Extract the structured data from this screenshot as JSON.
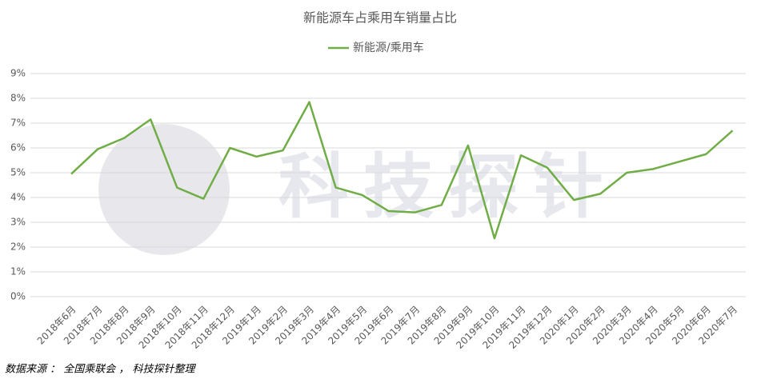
{
  "chart_data": {
    "type": "line",
    "title": "新能源车占乘用车销量占比",
    "categories": [
      "2018年6月",
      "2018年7月",
      "2018年8月",
      "2018年9月",
      "2018年10月",
      "2018年11月",
      "2018年12月",
      "2019年1月",
      "2019年2月",
      "2019年3月",
      "2019年4月",
      "2019年5月",
      "2019年6月",
      "2019年7月",
      "2019年8月",
      "2019年9月",
      "2019年10月",
      "2019年11月",
      "2019年12月",
      "2020年1月",
      "2020年2月",
      "2020年3月",
      "2020年4月",
      "2020年5月",
      "2020年6月",
      "2020年7月"
    ],
    "series": [
      {
        "name": "新能源/乘用车",
        "color": "#70ad47",
        "values": [
          4.95,
          5.95,
          6.4,
          7.15,
          4.4,
          3.95,
          6.0,
          5.65,
          5.9,
          7.85,
          4.4,
          4.1,
          3.45,
          3.4,
          3.7,
          6.1,
          2.35,
          5.7,
          5.2,
          3.9,
          4.15,
          5.0,
          5.15,
          5.45,
          5.75,
          6.7
        ]
      }
    ],
    "ylim": [
      0,
      9
    ],
    "yticks": [
      {
        "value": 0,
        "label": "0%"
      },
      {
        "value": 1,
        "label": "1%"
      },
      {
        "value": 2,
        "label": "2%"
      },
      {
        "value": 3,
        "label": "3%"
      },
      {
        "value": 4,
        "label": "4%"
      },
      {
        "value": 5,
        "label": "5%"
      },
      {
        "value": 6,
        "label": "6%"
      },
      {
        "value": 7,
        "label": "7%"
      },
      {
        "value": 8,
        "label": "8%"
      },
      {
        "value": 9,
        "label": "9%"
      }
    ],
    "grid": true,
    "legend": "top",
    "watermark": "科技探针",
    "source": "数据来源 ： 全国乘联会 ， 科技探针整理"
  }
}
